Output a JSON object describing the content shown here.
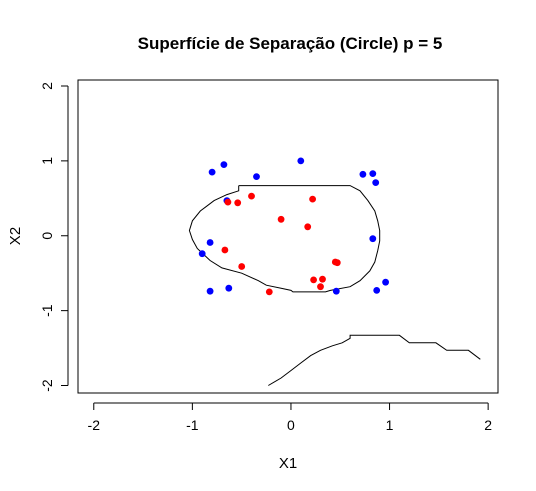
{
  "chart_data": {
    "type": "scatter",
    "title": "Superfície de Separação (Circle) p = 5",
    "xlabel": "X1",
    "ylabel": "X2",
    "xlim": [
      -2.16,
      2.1
    ],
    "ylim": [
      -2.1,
      2.08
    ],
    "xticks": [
      -2,
      -1,
      0,
      1,
      2
    ],
    "yticks": [
      -2,
      -1,
      0,
      1,
      2
    ],
    "xtick_labels": [
      "-2",
      "-1",
      "0",
      "1",
      "2"
    ],
    "ytick_labels": [
      "-2",
      "-1",
      "0",
      "1",
      "2"
    ],
    "grid": false,
    "legend": false,
    "colors": {
      "class_outside": "#0000FF",
      "class_inside": "#FF0000",
      "boundary": "#000000"
    },
    "series": [
      {
        "color": "#0000FF",
        "points": [
          [
            -0.8,
            0.85
          ],
          [
            -0.68,
            0.95
          ],
          [
            -0.35,
            0.79
          ],
          [
            0.1,
            1.0
          ],
          [
            0.73,
            0.82
          ],
          [
            0.83,
            0.83
          ],
          [
            0.86,
            0.71
          ],
          [
            -0.65,
            0.47
          ],
          [
            0.83,
            -0.04
          ],
          [
            -0.82,
            -0.09
          ],
          [
            -0.9,
            -0.24
          ],
          [
            0.96,
            -0.62
          ],
          [
            -0.82,
            -0.74
          ],
          [
            -0.63,
            -0.7
          ],
          [
            0.46,
            -0.74
          ],
          [
            0.87,
            -0.73
          ]
        ]
      },
      {
        "color": "#FF0000",
        "points": [
          [
            -0.4,
            0.53
          ],
          [
            -0.54,
            0.44
          ],
          [
            -0.64,
            0.45
          ],
          [
            0.22,
            0.49
          ],
          [
            -0.1,
            0.22
          ],
          [
            0.17,
            0.12
          ],
          [
            -0.67,
            -0.19
          ],
          [
            -0.5,
            -0.41
          ],
          [
            0.45,
            -0.35
          ],
          [
            0.47,
            -0.36
          ],
          [
            0.23,
            -0.59
          ],
          [
            0.32,
            -0.58
          ],
          [
            0.3,
            -0.68
          ],
          [
            -0.22,
            -0.75
          ]
        ]
      }
    ],
    "boundaries": [
      [
        [
          -0.53,
          0.67
        ],
        [
          -0.43,
          0.67
        ],
        [
          -0.33,
          0.67
        ],
        [
          -0.3,
          0.67
        ],
        [
          0.6,
          0.67
        ],
        [
          0.7,
          0.6
        ],
        [
          0.78,
          0.47
        ],
        [
          0.85,
          0.33
        ],
        [
          0.88,
          0.2
        ],
        [
          0.9,
          0.07
        ],
        [
          0.9,
          -0.07
        ],
        [
          0.88,
          -0.2
        ],
        [
          0.85,
          -0.35
        ],
        [
          0.8,
          -0.47
        ],
        [
          0.7,
          -0.6
        ],
        [
          0.6,
          -0.68
        ],
        [
          0.4,
          -0.73
        ],
        [
          0.35,
          -0.75
        ],
        [
          0.02,
          -0.75
        ],
        [
          0.0,
          -0.73
        ],
        [
          -0.1,
          -0.7
        ],
        [
          -0.25,
          -0.66
        ],
        [
          -0.33,
          -0.6
        ],
        [
          -0.5,
          -0.5
        ],
        [
          -0.7,
          -0.43
        ],
        [
          -0.82,
          -0.33
        ],
        [
          -0.95,
          -0.17
        ],
        [
          -1.0,
          -0.05
        ],
        [
          -1.03,
          0.07
        ],
        [
          -1.0,
          0.2
        ],
        [
          -0.92,
          0.33
        ],
        [
          -0.85,
          0.4
        ],
        [
          -0.78,
          0.47
        ],
        [
          -0.65,
          0.55
        ],
        [
          -0.53,
          0.6
        ],
        [
          -0.53,
          0.67
        ]
      ],
      [
        [
          -0.23,
          -2.0
        ],
        [
          -0.1,
          -1.9
        ],
        [
          0.0,
          -1.8
        ],
        [
          0.1,
          -1.7
        ],
        [
          0.2,
          -1.6
        ],
        [
          0.3,
          -1.53
        ],
        [
          0.42,
          -1.47
        ],
        [
          0.52,
          -1.43
        ],
        [
          0.6,
          -1.37
        ],
        [
          0.6,
          -1.33
        ],
        [
          1.1,
          -1.33
        ],
        [
          1.2,
          -1.43
        ],
        [
          1.47,
          -1.43
        ],
        [
          1.58,
          -1.53
        ],
        [
          1.8,
          -1.53
        ],
        [
          1.92,
          -1.65
        ]
      ]
    ]
  }
}
